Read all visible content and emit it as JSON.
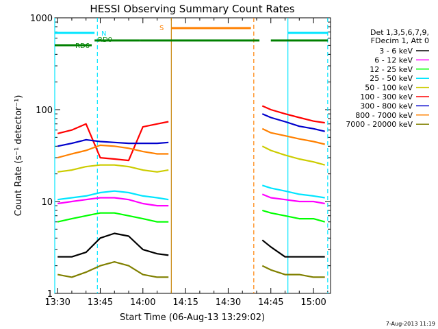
{
  "chart_data": {
    "type": "line",
    "title": "HESSI Observing Summary Count Rates",
    "xlabel": "Start Time (06-Aug-13 13:29:02)",
    "ylabel": "Count Rate (s⁻¹ detector⁻¹)",
    "yscale": "log",
    "ylim": [
      1,
      1000
    ],
    "xlim": [
      "13:29",
      "15:06"
    ],
    "x_ticks": [
      "13:30",
      "13:45",
      "14:00",
      "14:15",
      "14:30",
      "14:45",
      "15:00"
    ],
    "y_ticks": [
      "1",
      "10",
      "100",
      "1000"
    ],
    "legend_header": [
      "Det 1,3,5,6,7,9,",
      "FDecim 1, Att 0"
    ],
    "legend_position": "right",
    "footer_text": "7-Aug-2013 11:19",
    "flags": [
      {
        "label": "N",
        "color": "#00e5ff",
        "segments": [
          [
            "13:29",
            "13:43"
          ],
          [
            "14:51",
            "15:05"
          ]
        ]
      },
      {
        "label": "RD0",
        "color": "#008000",
        "segments": [
          [
            "13:43",
            "13:59"
          ],
          [
            "13:59",
            "14:41"
          ],
          [
            "14:45",
            "15:05"
          ]
        ]
      },
      {
        "label": "RD6",
        "color": "#008000",
        "segments": [
          [
            "13:29",
            "13:42"
          ]
        ]
      },
      {
        "label": "S",
        "color": "#ff8000",
        "segments": [
          [
            "14:10",
            "14:38"
          ]
        ]
      }
    ],
    "vertical_markers": [
      {
        "time": "13:29",
        "color": "#00e5ff",
        "style": "solid"
      },
      {
        "time": "13:44",
        "color": "#00e5ff",
        "style": "dashed"
      },
      {
        "time": "14:10",
        "color": "#c8860a",
        "style": "solid"
      },
      {
        "time": "14:39",
        "color": "#ff8000",
        "style": "dashed"
      },
      {
        "time": "14:51",
        "color": "#00e5ff",
        "style": "solid"
      },
      {
        "time": "15:05",
        "color": "#00e5ff",
        "style": "dashed"
      }
    ],
    "series": [
      {
        "name": "3 - 6 keV",
        "color": "#000000",
        "segments": [
          {
            "x": [
              "13:30",
              "13:35",
              "13:40",
              "13:45",
              "13:50",
              "13:55",
              "14:00",
              "14:05",
              "14:09"
            ],
            "y": [
              2.5,
              2.5,
              2.8,
              4,
              4.5,
              4.2,
              3,
              2.7,
              2.6
            ]
          },
          {
            "x": [
              "14:42",
              "14:45",
              "14:50",
              "14:55",
              "15:00",
              "15:04"
            ],
            "y": [
              3.8,
              3.2,
              2.5,
              2.5,
              2.5,
              2.5
            ]
          }
        ]
      },
      {
        "name": "6 - 12 keV",
        "color": "#ff00ff",
        "segments": [
          {
            "x": [
              "13:30",
              "13:35",
              "13:40",
              "13:45",
              "13:50",
              "13:55",
              "14:00",
              "14:05",
              "14:09"
            ],
            "y": [
              9.5,
              10,
              10.5,
              11,
              11,
              10.5,
              9.5,
              9,
              9
            ]
          },
          {
            "x": [
              "14:42",
              "14:45",
              "14:50",
              "14:55",
              "15:00",
              "15:04"
            ],
            "y": [
              12,
              11,
              10.5,
              10,
              10,
              9.5
            ]
          }
        ]
      },
      {
        "name": "12 - 25 keV",
        "color": "#00ff00",
        "segments": [
          {
            "x": [
              "13:30",
              "13:35",
              "13:40",
              "13:45",
              "13:50",
              "13:55",
              "14:00",
              "14:05",
              "14:09"
            ],
            "y": [
              6,
              6.5,
              7,
              7.5,
              7.5,
              7,
              6.5,
              6,
              6
            ]
          },
          {
            "x": [
              "14:42",
              "14:45",
              "14:50",
              "14:55",
              "15:00",
              "15:04"
            ],
            "y": [
              8,
              7.5,
              7,
              6.5,
              6.5,
              6
            ]
          }
        ]
      },
      {
        "name": "25 - 50 keV",
        "color": "#00e5ff",
        "segments": [
          {
            "x": [
              "13:30",
              "13:35",
              "13:40",
              "13:45",
              "13:50",
              "13:55",
              "14:00",
              "14:05",
              "14:09"
            ],
            "y": [
              10.5,
              11,
              11.5,
              12.5,
              13,
              12.5,
              11.5,
              11,
              10.5
            ]
          },
          {
            "x": [
              "14:42",
              "14:45",
              "14:50",
              "14:55",
              "15:00",
              "15:04"
            ],
            "y": [
              15,
              14,
              13,
              12,
              11.5,
              11
            ]
          }
        ]
      },
      {
        "name": "50 - 100 keV",
        "color": "#cccc00",
        "segments": [
          {
            "x": [
              "13:30",
              "13:35",
              "13:40",
              "13:45",
              "13:50",
              "13:55",
              "14:00",
              "14:05",
              "14:09"
            ],
            "y": [
              21,
              22,
              24,
              25,
              25,
              24,
              22,
              21,
              22
            ]
          },
          {
            "x": [
              "14:42",
              "14:45",
              "14:50",
              "14:55",
              "15:00",
              "15:04"
            ],
            "y": [
              40,
              36,
              32,
              29,
              27,
              25
            ]
          }
        ]
      },
      {
        "name": "100 - 300 keV",
        "color": "#ff0000",
        "segments": [
          {
            "x": [
              "13:30",
              "13:35",
              "13:40",
              "13:45",
              "13:50",
              "13:55",
              "14:00",
              "14:05",
              "14:09"
            ],
            "y": [
              55,
              60,
              70,
              30,
              29,
              28,
              65,
              70,
              74
            ]
          },
          {
            "x": [
              "14:42",
              "14:45",
              "14:50",
              "14:55",
              "15:00",
              "15:04"
            ],
            "y": [
              110,
              100,
              90,
              82,
              75,
              72
            ]
          }
        ]
      },
      {
        "name": "300 - 800 keV",
        "color": "#0000cc",
        "segments": [
          {
            "x": [
              "13:30",
              "13:35",
              "13:40",
              "13:45",
              "13:50",
              "13:55",
              "14:00",
              "14:05",
              "14:09"
            ],
            "y": [
              40,
              43,
              47,
              45,
              44,
              43,
              43,
              43,
              44
            ]
          },
          {
            "x": [
              "14:42",
              "14:45",
              "14:50",
              "14:55",
              "15:00",
              "15:04"
            ],
            "y": [
              90,
              82,
              74,
              66,
              62,
              58
            ]
          }
        ]
      },
      {
        "name": "800 - 7000 keV",
        "color": "#ff8000",
        "segments": [
          {
            "x": [
              "13:30",
              "13:35",
              "13:40",
              "13:45",
              "13:50",
              "13:55",
              "14:00",
              "14:05",
              "14:09"
            ],
            "y": [
              30,
              33,
              36,
              41,
              40,
              38,
              35,
              33,
              33
            ]
          },
          {
            "x": [
              "14:42",
              "14:45",
              "14:50",
              "14:55",
              "15:00",
              "15:04"
            ],
            "y": [
              62,
              56,
              52,
              48,
              45,
              42
            ]
          }
        ]
      },
      {
        "name": "7000 - 20000 keV",
        "color": "#808000",
        "segments": [
          {
            "x": [
              "13:30",
              "13:35",
              "13:40",
              "13:45",
              "13:50",
              "13:55",
              "14:00",
              "14:05",
              "14:09"
            ],
            "y": [
              1.6,
              1.5,
              1.7,
              2,
              2.2,
              2,
              1.6,
              1.5,
              1.5
            ]
          },
          {
            "x": [
              "14:42",
              "14:45",
              "14:50",
              "14:55",
              "15:00",
              "15:04"
            ],
            "y": [
              2,
              1.8,
              1.6,
              1.6,
              1.5,
              1.5
            ]
          }
        ]
      }
    ]
  }
}
